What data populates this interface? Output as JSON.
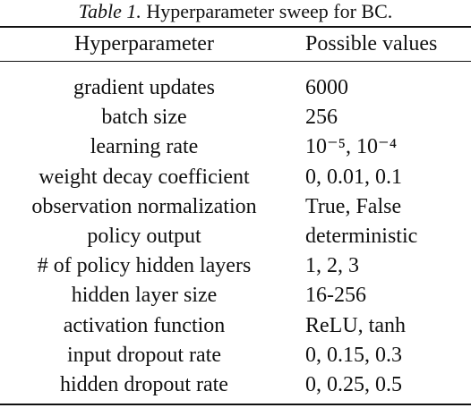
{
  "caption": {
    "label": "Table 1.",
    "text": "Hyperparameter sweep for BC."
  },
  "headers": {
    "param": "Hyperparameter",
    "values": "Possible values"
  },
  "rows": [
    {
      "param": "gradient updates",
      "value": "6000"
    },
    {
      "param": "batch size",
      "value": "256"
    },
    {
      "param": "learning rate",
      "value": "10⁻⁵, 10⁻⁴"
    },
    {
      "param": "weight decay coefficient",
      "value": "0, 0.01, 0.1"
    },
    {
      "param": "observation normalization",
      "value": "True, False"
    },
    {
      "param": "policy output",
      "value": "deterministic"
    },
    {
      "param": "# of policy hidden layers",
      "value": "1, 2, 3"
    },
    {
      "param": "hidden layer size",
      "value": "16-256"
    },
    {
      "param": "activation function",
      "value": "ReLU, tanh"
    },
    {
      "param": "input dropout rate",
      "value": "0, 0.15, 0.3"
    },
    {
      "param": "hidden dropout rate",
      "value": "0, 0.25, 0.5"
    }
  ]
}
